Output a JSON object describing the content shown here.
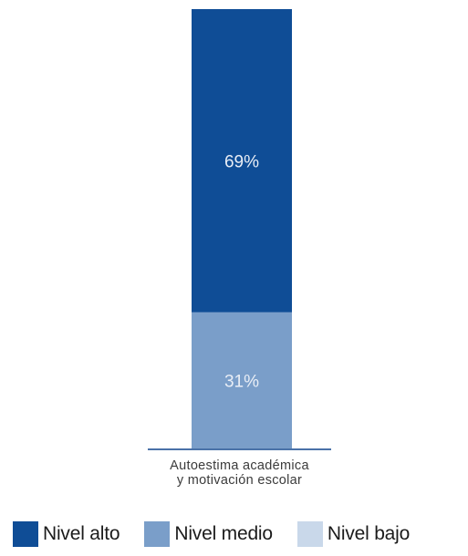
{
  "chart_data": {
    "type": "bar",
    "stacked": true,
    "percent": true,
    "categories": [
      "Autoestima académica y motivación escolar"
    ],
    "category_label_lines": [
      "Autoestima académica",
      "y motivación escolar"
    ],
    "series": [
      {
        "name": "Nivel alto",
        "values": [
          69
        ],
        "color": "#0f4d96",
        "label": "69%"
      },
      {
        "name": "Nivel medio",
        "values": [
          31
        ],
        "color": "#7a9ec9",
        "label": "31%"
      },
      {
        "name": "Nivel bajo",
        "values": [
          0
        ],
        "color": "#c9d8ea",
        "label": ""
      }
    ],
    "ylim": [
      0,
      100
    ],
    "grid": false,
    "legend_position": "bottom"
  }
}
